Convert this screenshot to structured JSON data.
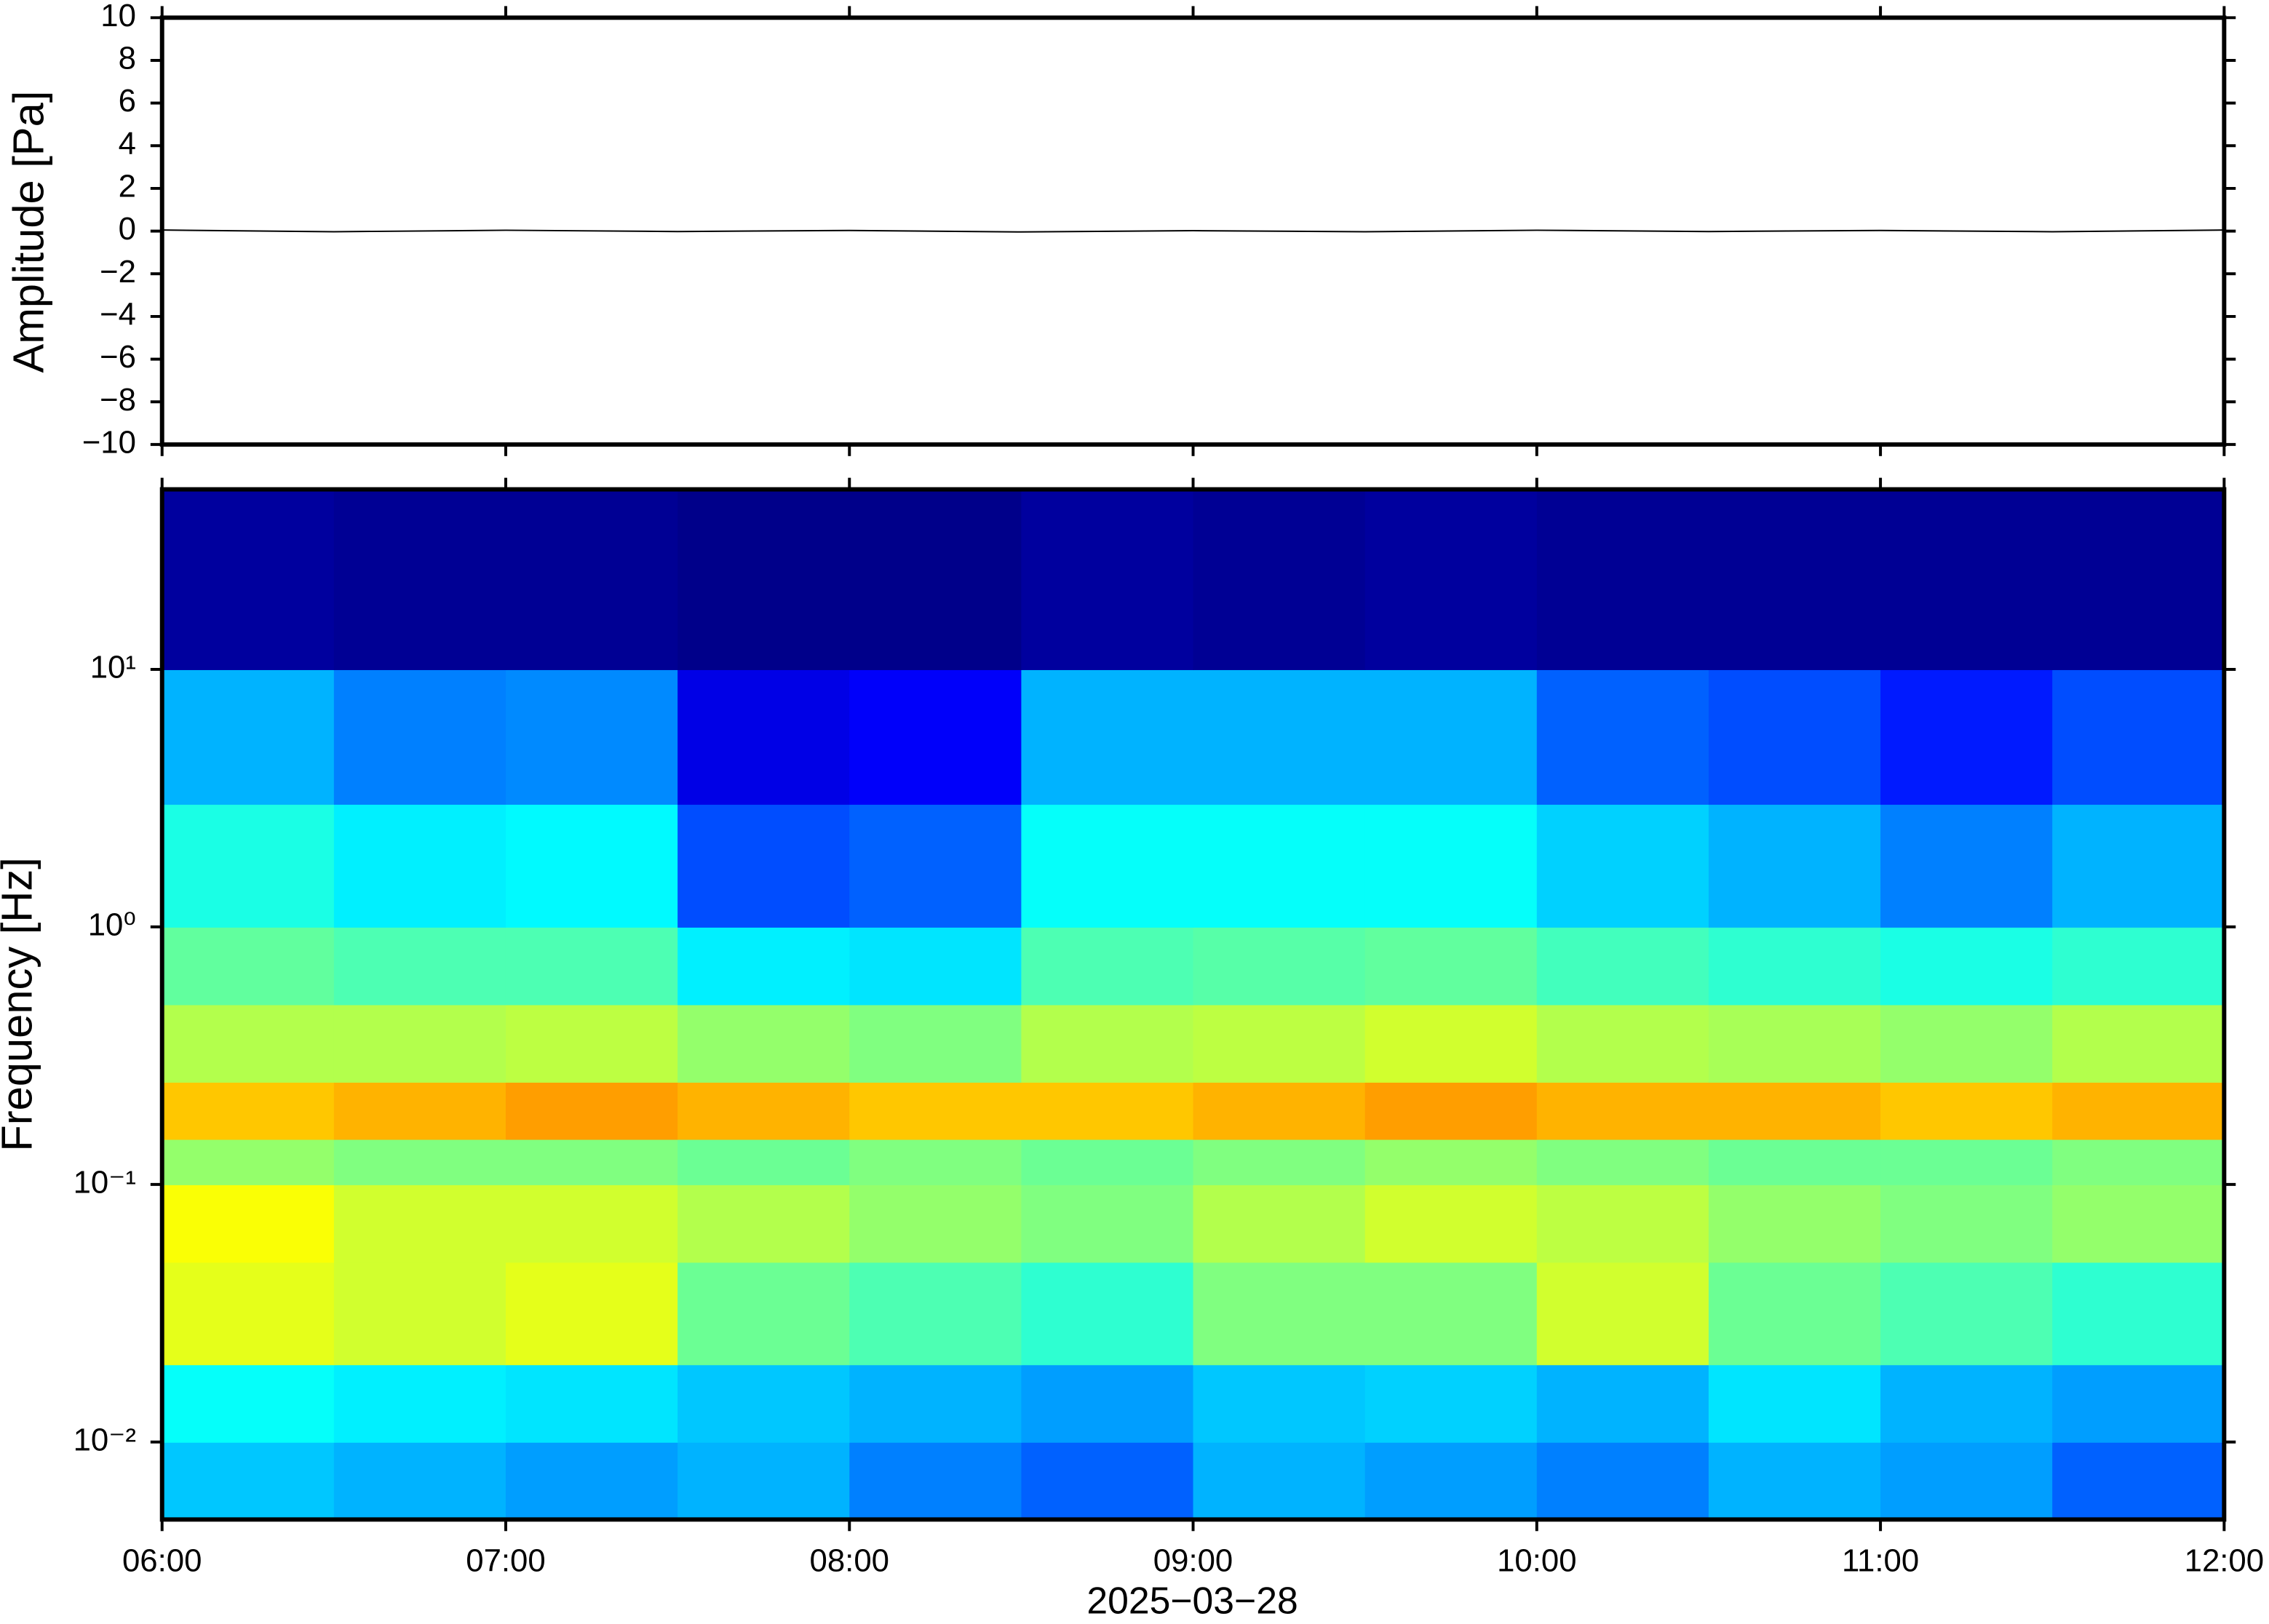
{
  "chart_data": [
    {
      "type": "line",
      "ylabel": "Amplitude [Pa]",
      "color": "#000000",
      "x": [
        6,
        6.5,
        7,
        7.5,
        8,
        8.5,
        9,
        9.5,
        10,
        10.5,
        11,
        11.5,
        12
      ],
      "values": [
        0.05,
        -0.03,
        0.04,
        -0.02,
        0.03,
        -0.04,
        0.02,
        -0.03,
        0.04,
        -0.02,
        0.03,
        -0.03,
        0.05
      ],
      "xlim": [
        6,
        12
      ],
      "xticks": [
        {
          "value": 6,
          "label": "06:00"
        },
        {
          "value": 7,
          "label": "07:00"
        },
        {
          "value": 8,
          "label": "08:00"
        },
        {
          "value": 9,
          "label": "09:00"
        },
        {
          "value": 10,
          "label": "10:00"
        },
        {
          "value": 11,
          "label": "11:00"
        },
        {
          "value": 12,
          "label": "12:00"
        }
      ],
      "ylim": [
        -10,
        10
      ],
      "yticks": [
        {
          "value": -10,
          "label": "−10"
        },
        {
          "value": -8,
          "label": "−8"
        },
        {
          "value": -6,
          "label": "−6"
        },
        {
          "value": -4,
          "label": "−4"
        },
        {
          "value": -2,
          "label": "−2"
        },
        0,
        2,
        4,
        6,
        8,
        10
      ]
    },
    {
      "type": "heatmap",
      "ylabel": "Frequency [Hz]",
      "xlabel": "2025−03−28",
      "colormap": "jet",
      "log_y": true,
      "x_bins": [
        6,
        6.5,
        7,
        7.5,
        8,
        8.5,
        9,
        9.5,
        10,
        10.5,
        11,
        11.5,
        12
      ],
      "y_bins": [
        0.005,
        0.01,
        0.02,
        0.05,
        0.1,
        0.15,
        0.25,
        0.5,
        1,
        3,
        10,
        50
      ],
      "zlim": [
        0,
        1
      ],
      "values": [
        [
          0.32,
          0.3,
          0.28,
          0.3,
          0.25,
          0.22,
          0.3,
          0.28,
          0.25,
          0.3,
          0.28,
          0.22
        ],
        [
          0.38,
          0.36,
          0.35,
          0.32,
          0.3,
          0.28,
          0.32,
          0.33,
          0.3,
          0.35,
          0.3,
          0.28
        ],
        [
          0.6,
          0.58,
          0.6,
          0.48,
          0.45,
          0.42,
          0.5,
          0.5,
          0.58,
          0.48,
          0.45,
          0.42
        ],
        [
          0.62,
          0.58,
          0.58,
          0.55,
          0.52,
          0.5,
          0.55,
          0.58,
          0.56,
          0.52,
          0.5,
          0.52
        ],
        [
          0.52,
          0.5,
          0.5,
          0.48,
          0.5,
          0.48,
          0.5,
          0.52,
          0.5,
          0.48,
          0.48,
          0.5
        ],
        [
          0.68,
          0.7,
          0.72,
          0.7,
          0.68,
          0.68,
          0.7,
          0.72,
          0.7,
          0.7,
          0.68,
          0.7
        ],
        [
          0.55,
          0.55,
          0.56,
          0.52,
          0.5,
          0.55,
          0.56,
          0.58,
          0.55,
          0.54,
          0.52,
          0.55
        ],
        [
          0.47,
          0.45,
          0.45,
          0.36,
          0.35,
          0.45,
          0.46,
          0.47,
          0.44,
          0.42,
          0.4,
          0.42
        ],
        [
          0.4,
          0.36,
          0.37,
          0.2,
          0.22,
          0.38,
          0.38,
          0.38,
          0.33,
          0.3,
          0.25,
          0.3
        ],
        [
          0.3,
          0.25,
          0.26,
          0.1,
          0.12,
          0.3,
          0.3,
          0.3,
          0.22,
          0.2,
          0.15,
          0.2
        ],
        [
          0.03,
          0.02,
          0.02,
          0.01,
          0.01,
          0.03,
          0.02,
          0.03,
          0.02,
          0.02,
          0.02,
          0.02
        ]
      ],
      "xlim": [
        6,
        12
      ],
      "xticks": [
        {
          "value": 6,
          "label": "06:00"
        },
        {
          "value": 7,
          "label": "07:00"
        },
        {
          "value": 8,
          "label": "08:00"
        },
        {
          "value": 9,
          "label": "09:00"
        },
        {
          "value": 10,
          "label": "10:00"
        },
        {
          "value": 11,
          "label": "11:00"
        },
        {
          "value": 12,
          "label": "12:00"
        }
      ],
      "ylim": [
        0.005,
        50
      ],
      "yticks": [
        {
          "value": 0.01,
          "label": "10⁻²"
        },
        {
          "value": 0.1,
          "label": "10⁻¹"
        },
        {
          "value": 1,
          "label": "10⁰"
        },
        {
          "value": 10,
          "label": "10¹"
        }
      ]
    }
  ]
}
